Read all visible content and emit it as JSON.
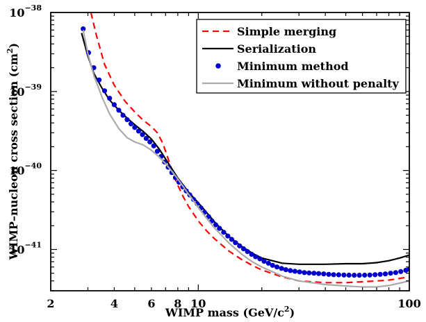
{
  "chart_data": {
    "type": "line",
    "xscale": "log",
    "yscale": "log",
    "xlim": [
      2,
      100
    ],
    "ylim": [
      3e-42,
      1e-38
    ],
    "grid": false,
    "legend_position": "top-right",
    "xlabel_main": "WIMP mass (GeV/c",
    "xlabel_sup": "2",
    "xlabel_tail": ")",
    "ylabel_main": "WIMP–nucleon cross section (cm",
    "ylabel_sup": "2",
    "ylabel_tail": ")",
    "x_ticks": [
      {
        "value": 2,
        "label": "2"
      },
      {
        "value": 4,
        "label": "4"
      },
      {
        "value": 6,
        "label": "6"
      },
      {
        "value": 8,
        "label": "8"
      },
      {
        "value": 10,
        "label": "10"
      },
      {
        "value": 100,
        "label": "100"
      }
    ],
    "y_ticks": [
      {
        "value": 1e-41,
        "base": "10",
        "exp": "−41"
      },
      {
        "value": 1e-40,
        "base": "10",
        "exp": "−40"
      },
      {
        "value": 1e-39,
        "base": "10",
        "exp": "−39"
      },
      {
        "value": 1e-38,
        "base": "10",
        "exp": "−38"
      }
    ],
    "series": [
      {
        "name": "Simple merging",
        "color": "#ff0000",
        "style": "dashed",
        "x": [
          3.1,
          3.3,
          3.6,
          4.0,
          4.5,
          5.0,
          5.5,
          6.0,
          6.4,
          6.8,
          7.2,
          7.6,
          8.0,
          8.5,
          9.0,
          10,
          11,
          12,
          14,
          16,
          18,
          20,
          25,
          30,
          40,
          50,
          60,
          70,
          80,
          90,
          100
        ],
        "y": [
          1e-38,
          5e-39,
          2.2e-39,
          1.2e-39,
          7.5e-40,
          5.5e-40,
          4.3e-40,
          3.6e-40,
          3e-40,
          2.2e-40,
          1.4e-40,
          9e-41,
          6.5e-41,
          4.6e-41,
          3.5e-41,
          2.3e-41,
          1.7e-41,
          1.35e-41,
          9.5e-42,
          7.5e-42,
          6.3e-42,
          5.5e-42,
          4.5e-42,
          4e-42,
          3.8e-42,
          3.8e-42,
          3.9e-42,
          4e-42,
          4.1e-42,
          4.3e-42,
          4.5e-42
        ]
      },
      {
        "name": "Serialization",
        "color": "#000000",
        "style": "solid",
        "x": [
          2.8,
          3.0,
          3.2,
          3.5,
          3.8,
          4.2,
          4.6,
          5.0,
          5.5,
          6.0,
          6.5,
          7.0,
          7.5,
          8.0,
          9.0,
          10,
          11,
          12,
          14,
          16,
          18,
          20,
          25,
          30,
          40,
          50,
          60,
          70,
          80,
          90,
          100
        ],
        "y": [
          5.5e-39,
          2.8e-39,
          1.7e-39,
          1.1e-39,
          7.8e-40,
          5.8e-40,
          4.6e-40,
          3.8e-40,
          3.1e-40,
          2.5e-40,
          1.9e-40,
          1.4e-40,
          1.05e-40,
          8e-41,
          5.3e-41,
          3.9e-41,
          2.9e-41,
          2.2e-41,
          1.45e-41,
          1.1e-41,
          9e-42,
          7.8e-42,
          6.7e-42,
          6.5e-42,
          6.5e-42,
          6.6e-42,
          6.6e-42,
          6.8e-42,
          7.2e-42,
          7.8e-42,
          8.5e-42
        ]
      },
      {
        "name": "Minimum method",
        "color": "#0000cc",
        "style": "dots",
        "x": [
          2.85,
          3.02,
          3.2,
          3.39,
          3.6,
          3.8,
          4.0,
          4.2,
          4.4,
          4.6,
          4.8,
          5.0,
          5.22,
          5.44,
          5.67,
          5.9,
          6.15,
          6.4,
          6.66,
          6.93,
          7.2,
          7.5,
          7.8,
          8.1,
          8.43,
          8.77,
          9.12,
          9.5,
          9.88,
          10.3,
          10.7,
          11.2,
          11.6,
          12.1,
          12.6,
          13.2,
          13.8,
          14.4,
          15.0,
          15.7,
          16.4,
          17.1,
          17.9,
          18.7,
          19.6,
          20.5,
          21.5,
          22.5,
          23.6,
          24.8,
          26.0,
          27.3,
          28.7,
          30.2,
          31.8,
          33.5,
          35.3,
          37.2,
          39.3,
          41.5,
          43.8,
          46.3,
          49.0,
          51.8,
          54.8,
          58.0,
          61.4,
          65.0,
          68.8,
          72.8,
          77.0,
          81.5,
          86.2,
          91.1,
          96.3,
          100
        ],
        "y": [
          6.2e-39,
          3.1e-39,
          2e-39,
          1.4e-39,
          1.02e-39,
          8.2e-40,
          6.8e-40,
          5.8e-40,
          5e-40,
          4.4e-40,
          3.9e-40,
          3.5e-40,
          3.15e-40,
          2.85e-40,
          2.55e-40,
          2.3e-40,
          2.05e-40,
          1.75e-40,
          1.5e-40,
          1.28e-40,
          1.1e-40,
          9.4e-41,
          8.1e-41,
          7.1e-41,
          6.2e-41,
          5.5e-41,
          4.9e-41,
          4.3e-41,
          3.8e-41,
          3.35e-41,
          2.95e-41,
          2.6e-41,
          2.3e-41,
          2.05e-41,
          1.85e-41,
          1.65e-41,
          1.48e-41,
          1.34e-41,
          1.22e-41,
          1.11e-41,
          1.02e-41,
          9.4e-42,
          8.7e-42,
          8.1e-42,
          7.6e-42,
          7.1e-42,
          6.7e-42,
          6.3e-42,
          6e-42,
          5.75e-42,
          5.55e-42,
          5.4e-42,
          5.3e-42,
          5.2e-42,
          5.1e-42,
          5.05e-42,
          5e-42,
          4.95e-42,
          4.9e-42,
          4.85e-42,
          4.8e-42,
          4.78e-42,
          4.75e-42,
          4.73e-42,
          4.72e-42,
          4.72e-42,
          4.73e-42,
          4.75e-42,
          4.8e-42,
          4.85e-42,
          4.9e-42,
          5e-42,
          5.1e-42,
          5.25e-42,
          5.45e-42,
          5.6e-42
        ]
      },
      {
        "name": "Minimum without penalty",
        "color": "#aaaaaa",
        "style": "solid",
        "x": [
          2.85,
          3.0,
          3.2,
          3.5,
          3.8,
          4.2,
          4.6,
          5.0,
          5.5,
          6.0,
          6.5,
          7.0,
          7.5,
          8.0,
          9.0,
          10,
          11,
          12,
          14,
          16,
          18,
          20,
          25,
          30,
          40,
          50,
          60,
          70,
          80,
          90,
          100
        ],
        "y": [
          6e-39,
          3e-39,
          1.6e-39,
          8.5e-40,
          5.2e-40,
          3.4e-40,
          2.6e-40,
          2.3e-40,
          2.1e-40,
          1.8e-40,
          1.5e-40,
          1.22e-40,
          9.8e-41,
          7.8e-41,
          5e-41,
          3.4e-41,
          2.45e-41,
          1.85e-41,
          1.2e-41,
          8.8e-42,
          7e-42,
          6e-42,
          4.6e-42,
          4e-42,
          3.6e-42,
          3.45e-42,
          3.35e-42,
          3.35e-42,
          3.5e-42,
          3.75e-42,
          4e-42
        ]
      }
    ]
  }
}
